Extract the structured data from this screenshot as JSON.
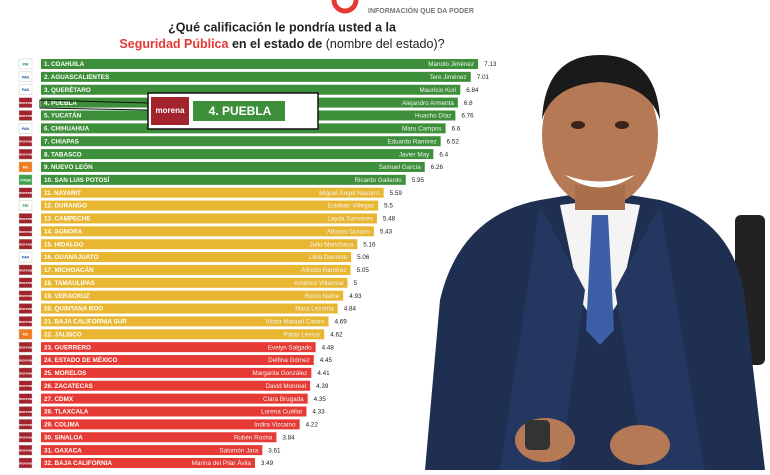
{
  "brand_tagline": "INFORMACIÓN QUE DA PODER",
  "chart_data": {
    "type": "bar",
    "title_line1": "¿Qué calificación le pondría usted a la",
    "title_highlight": "Seguridad Pública",
    "title_bold": "en el estado de",
    "title_rest": "(nombre del estado)?",
    "categories": [
      "1. COAHUILA",
      "2. AGUASCALIENTES",
      "3. QUERÉTARO",
      "4. PUEBLA",
      "5. YUCATÁN",
      "6. CHIHUAHUA",
      "7. CHIAPAS",
      "8. TABASCO",
      "9. NUEVO LEÓN",
      "10. SAN LUIS POTOSÍ",
      "11. NAYARIT",
      "12. DURANGO",
      "13. CAMPECHE",
      "14. SONORA",
      "15. HIDALGO",
      "16. GUANAJUATO",
      "17. MICHOACÁN",
      "18. TAMAULIPAS",
      "19. VERACRUZ",
      "20. QUINTANA ROO",
      "21. BAJA CALIFORNIA SUR",
      "22. JALISCO",
      "23. GUERRERO",
      "24. ESTADO DE MÉXICO",
      "25. MORELOS",
      "26. ZACATECAS",
      "27. CDMX",
      "28. TLAXCALA",
      "29. COLIMA",
      "30. SINALOA",
      "31. OAXACA",
      "32. BAJA CALIFORNIA"
    ],
    "governors": [
      "Manolo Jiménez",
      "Tere Jiménez",
      "Mauricio Kuri",
      "Alejandro Armenta",
      "Huacho Díaz",
      "Maru Campos",
      "Eduardo Ramírez",
      "Javier May",
      "Samuel García",
      "Ricardo Gallardo",
      "Miguel Ángel Navarro",
      "Esteban Villegas",
      "Layda Sansores",
      "Alfonso Durazo",
      "Julio Menchaca",
      "Libia Dennise",
      "Alfredo Ramírez",
      "Américo Villarreal",
      "Rocío Nahle",
      "Mara Lezama",
      "Víctor Manuel Castro",
      "Pablo Lemus",
      "Evelyn Salgado",
      "Delfina Gómez",
      "Margarita González",
      "David Monreal",
      "Clara Brugada",
      "Lorena Cuéllar",
      "Indira Vizcaíno",
      "Rubén Rocha",
      "Salomón Jara",
      "Marina del Pilar Ávila"
    ],
    "parties": [
      "PRI",
      "PAN",
      "PAN",
      "morena",
      "morena",
      "PAN",
      "morena",
      "morena",
      "MC",
      "PVEM",
      "morena",
      "PRI",
      "morena",
      "morena",
      "morena",
      "PAN",
      "morena",
      "morena",
      "morena",
      "morena",
      "morena",
      "MC",
      "morena",
      "morena",
      "morena",
      "morena",
      "morena",
      "morena",
      "morena",
      "morena",
      "morena",
      "morena"
    ],
    "values": [
      7.13,
      7.01,
      6.84,
      6.8,
      6.76,
      6.6,
      6.52,
      6.4,
      6.26,
      5.95,
      5.59,
      5.5,
      5.48,
      5.43,
      5.16,
      5.06,
      5.05,
      5,
      4.93,
      4.84,
      4.69,
      4.62,
      4.48,
      4.45,
      4.41,
      4.39,
      4.35,
      4.33,
      4.22,
      3.84,
      3.61,
      3.49
    ],
    "bar_colors": [
      "#3d8f3a",
      "#3d8f3a",
      "#3d8f3a",
      "#3d8f3a",
      "#3d8f3a",
      "#3d8f3a",
      "#3d8f3a",
      "#3d8f3a",
      "#3d8f3a",
      "#3d8f3a",
      "#e8b630",
      "#e8b630",
      "#e8b630",
      "#e8b630",
      "#e8b630",
      "#e8b630",
      "#e8b630",
      "#e8b630",
      "#e8b630",
      "#e8b630",
      "#e8b630",
      "#e8b630",
      "#e63b35",
      "#e63b35",
      "#e63b35",
      "#e63b35",
      "#e63b35",
      "#e63b35",
      "#e63b35",
      "#e63b35",
      "#e63b35",
      "#e63b35"
    ],
    "callout": {
      "badge": "morena",
      "label": "4. PUEBLA"
    }
  }
}
